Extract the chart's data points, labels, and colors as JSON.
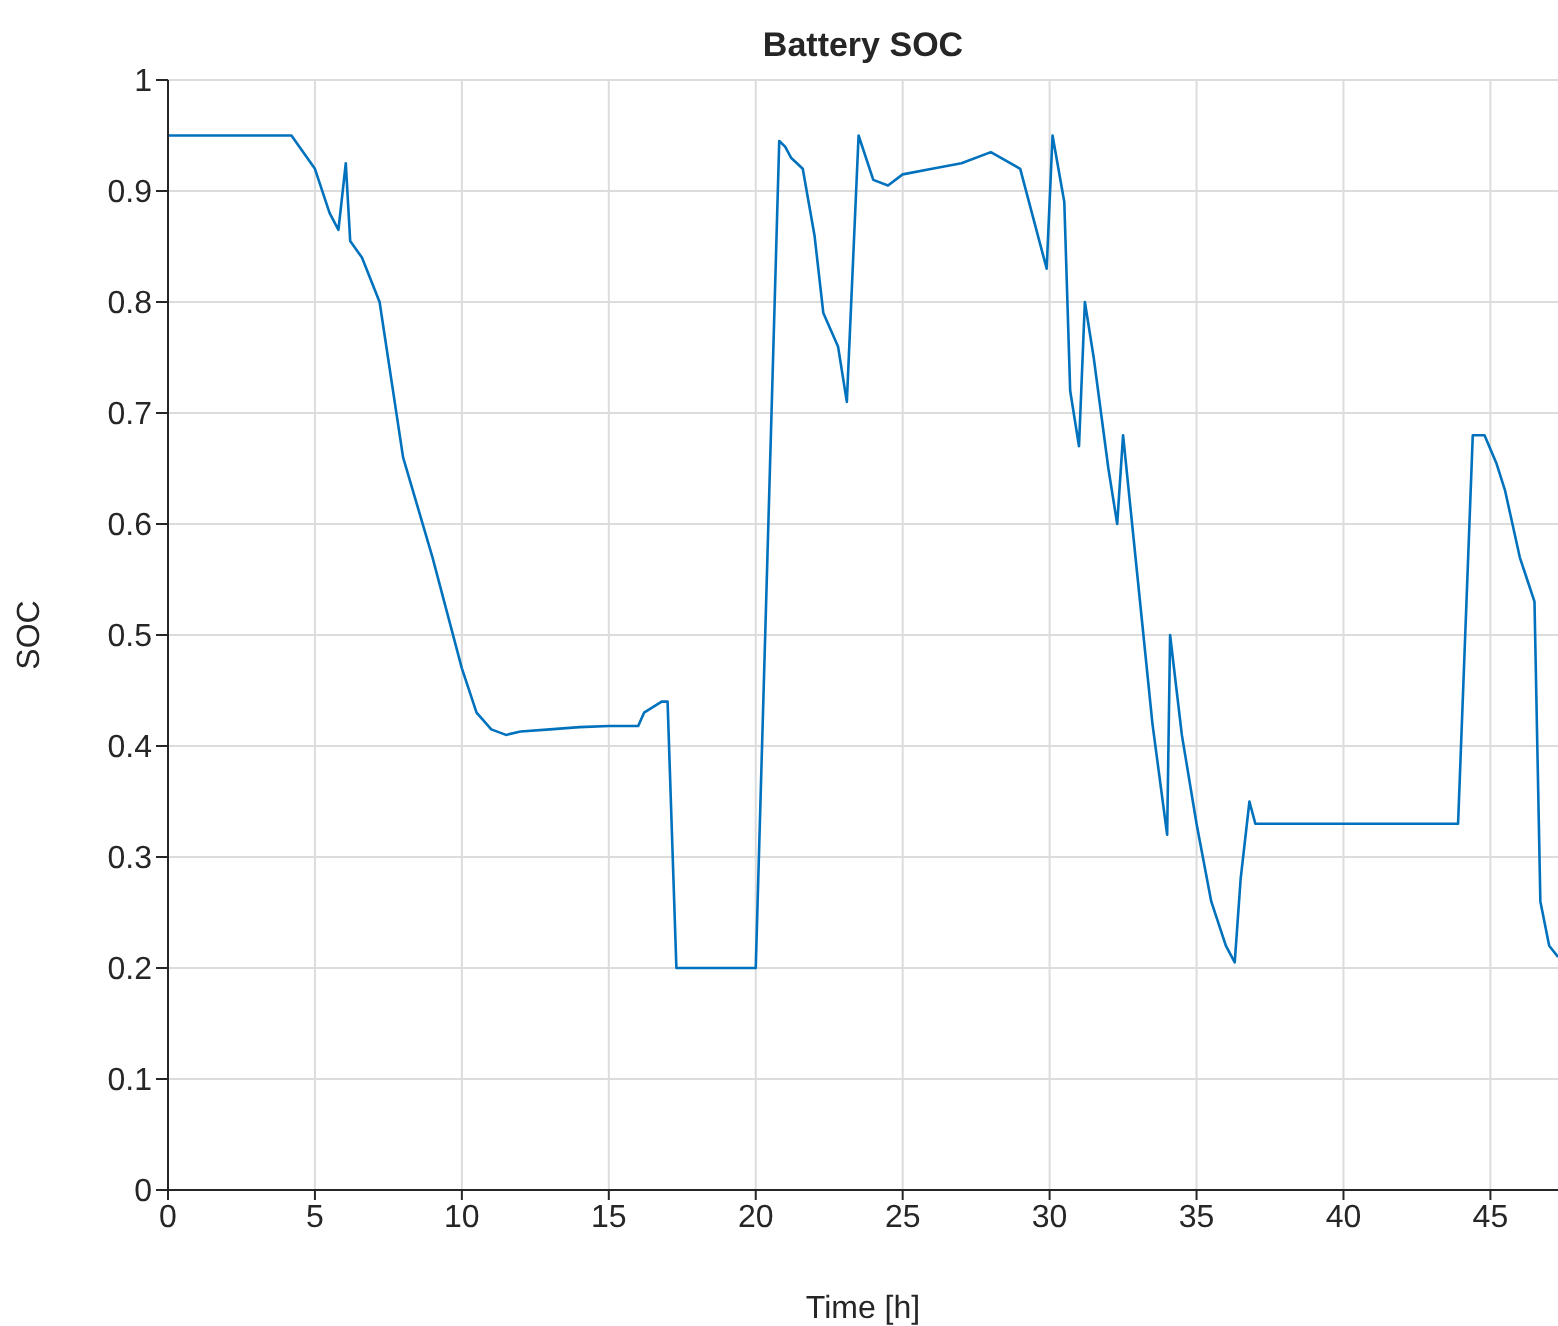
{
  "chart_data": {
    "type": "line",
    "title": "Battery SOC",
    "xlabel": "Time [h]",
    "ylabel": "SOC",
    "x": [
      0,
      4.2,
      5.0,
      5.5,
      5.8,
      6.05,
      6.2,
      6.6,
      7.2,
      8.0,
      9.0,
      10.0,
      10.5,
      11.0,
      11.5,
      12,
      13,
      14,
      15,
      16,
      16.2,
      16.5,
      16.8,
      17.0,
      17.3,
      18,
      20,
      20.8,
      21,
      21.2,
      21.6,
      22,
      22.3,
      22.8,
      23.1,
      23.5,
      24.0,
      24.5,
      25,
      26,
      27,
      28,
      29,
      29.9,
      30.1,
      30.5,
      30.7,
      31.0,
      31.2,
      31.5,
      32.0,
      32.3,
      32.5,
      33,
      33.5,
      34,
      34.1,
      34.5,
      35,
      35.5,
      36,
      36.3,
      36.5,
      36.8,
      37,
      43.9,
      44.4,
      44.8,
      45.2,
      45.5,
      46,
      46.5,
      46.7,
      47.0,
      47.3
    ],
    "series": [
      {
        "color": "#0072bd",
        "values": [
          0.95,
          0.95,
          0.92,
          0.88,
          0.865,
          0.925,
          0.855,
          0.84,
          0.8,
          0.66,
          0.57,
          0.47,
          0.43,
          0.415,
          0.41,
          0.413,
          0.415,
          0.417,
          0.418,
          0.418,
          0.43,
          0.435,
          0.44,
          0.44,
          0.2,
          0.2,
          0.2,
          0.945,
          0.94,
          0.93,
          0.92,
          0.86,
          0.79,
          0.76,
          0.71,
          0.95,
          0.91,
          0.905,
          0.915,
          0.92,
          0.925,
          0.935,
          0.92,
          0.83,
          0.95,
          0.89,
          0.72,
          0.67,
          0.8,
          0.75,
          0.65,
          0.6,
          0.68,
          0.55,
          0.42,
          0.32,
          0.5,
          0.41,
          0.33,
          0.26,
          0.22,
          0.205,
          0.28,
          0.35,
          0.33,
          0.33,
          0.68,
          0.68,
          0.655,
          0.63,
          0.57,
          0.53,
          0.26,
          0.22,
          0.21
        ]
      }
    ],
    "xlim": [
      0,
      47.3
    ],
    "xticks": [
      0,
      5,
      10,
      15,
      20,
      25,
      30,
      35,
      40,
      45
    ],
    "ylim": [
      0,
      1
    ],
    "yticks": [
      0,
      0.1,
      0.2,
      0.3,
      0.4,
      0.5,
      0.6,
      0.7,
      0.8,
      0.9,
      1
    ],
    "grid": true,
    "marker": "none",
    "line_style": "solid"
  }
}
